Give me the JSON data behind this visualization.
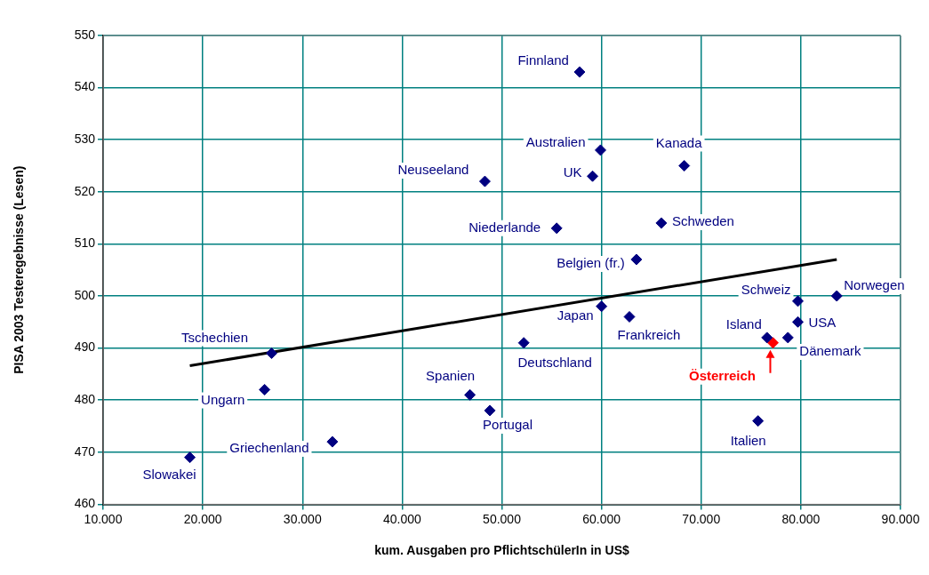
{
  "chart_data": {
    "type": "scatter",
    "xlabel": "kum. Ausgaben pro PflichtschülerIn in US$",
    "ylabel": "PISA 2003 Testeregebnisse (Lesen)",
    "xlim": [
      10000,
      90000
    ],
    "xticks": [
      {
        "value": 10000,
        "label": "10.000"
      },
      {
        "value": 20000,
        "label": "20.000"
      },
      {
        "value": 30000,
        "label": "30.000"
      },
      {
        "value": 40000,
        "label": "40.000"
      },
      {
        "value": 50000,
        "label": "50.000"
      },
      {
        "value": 60000,
        "label": "60.000"
      },
      {
        "value": 70000,
        "label": "70.000"
      },
      {
        "value": 80000,
        "label": "80.000"
      },
      {
        "value": 90000,
        "label": "90.000"
      }
    ],
    "ylim": [
      460,
      550
    ],
    "yticks": [
      460,
      470,
      480,
      490,
      500,
      510,
      520,
      530,
      540,
      550
    ],
    "grid": true,
    "legend": false,
    "marker": "diamond",
    "series": [
      {
        "color": "#000080",
        "x": [
          57800,
          59900,
          59100,
          68300,
          48300,
          55500,
          66000,
          63500,
          60000,
          62800,
          52200,
          79700,
          83600,
          79700,
          78700,
          76600,
          75700,
          48800,
          46800,
          26900,
          26200,
          33000,
          18700
        ],
        "values": [
          543,
          528,
          523,
          525,
          522,
          513,
          514,
          507,
          498,
          496,
          491,
          499,
          500,
          495,
          492,
          492,
          476,
          478,
          481,
          489,
          482,
          472,
          469
        ]
      },
      {
        "color": "#ff0000",
        "x": [
          77200
        ],
        "values": [
          491
        ]
      },
      {
        "type": "line",
        "color": "#000000",
        "marker": "none",
        "x": [
          18700,
          83600
        ],
        "values": [
          486.6,
          507.0
        ]
      }
    ],
    "annotations": [
      {
        "text": "Finnland",
        "x": 57800,
        "y": 543
      },
      {
        "text": "Australien",
        "x": 59900,
        "y": 528
      },
      {
        "text": "UK",
        "x": 59100,
        "y": 523
      },
      {
        "text": "Kanada",
        "x": 68300,
        "y": 525
      },
      {
        "text": "Neuseeland",
        "x": 48300,
        "y": 522
      },
      {
        "text": "Niederlande",
        "x": 55500,
        "y": 513
      },
      {
        "text": "Schweden",
        "x": 66000,
        "y": 514
      },
      {
        "text": "Belgien (fr.)",
        "x": 63500,
        "y": 507
      },
      {
        "text": "Japan",
        "x": 60000,
        "y": 498
      },
      {
        "text": "Frankreich",
        "x": 62800,
        "y": 496
      },
      {
        "text": "Deutschland",
        "x": 52200,
        "y": 491
      },
      {
        "text": "Schweiz",
        "x": 79700,
        "y": 499
      },
      {
        "text": "Norwegen",
        "x": 83600,
        "y": 500
      },
      {
        "text": "USA",
        "x": 79700,
        "y": 495
      },
      {
        "text": "Dänemark",
        "x": 78700,
        "y": 492
      },
      {
        "text": "Island",
        "x": 76600,
        "y": 492
      },
      {
        "text": "Italien",
        "x": 75700,
        "y": 476
      },
      {
        "text": "Portugal",
        "x": 48800,
        "y": 478
      },
      {
        "text": "Spanien",
        "x": 46800,
        "y": 481
      },
      {
        "text": "Tschechien",
        "x": 26900,
        "y": 489
      },
      {
        "text": "Ungarn",
        "x": 26200,
        "y": 482
      },
      {
        "text": "Griechenland",
        "x": 33000,
        "y": 472
      },
      {
        "text": "Slowakei",
        "x": 18700,
        "y": 469
      },
      {
        "text": "Österreich",
        "x": 77200,
        "y": 491
      }
    ]
  }
}
